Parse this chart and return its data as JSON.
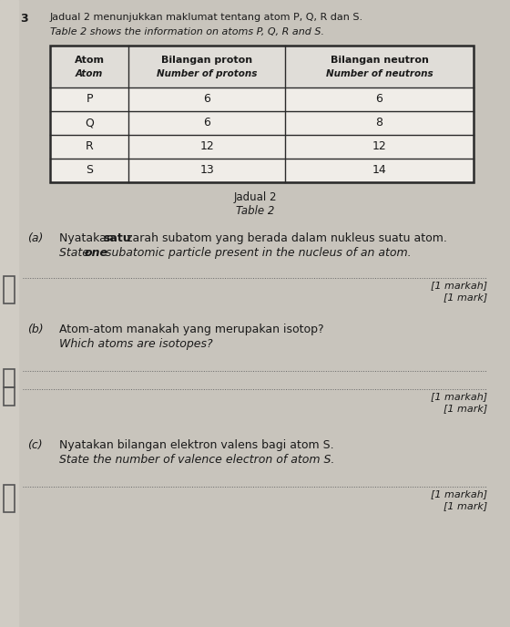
{
  "page_bg": "#c8c4bc",
  "inner_bg": "#dedad2",
  "question_number": "3",
  "title_malay": "Jadual 2 menunjukkan maklumat tentang atom P, Q, R dan S.",
  "title_english": "Table 2 shows the information on atoms P, Q, R and S.",
  "table_caption_malay": "Jadual 2",
  "table_caption_english": "Table 2",
  "col_headers": [
    [
      "Atom",
      "Atom"
    ],
    [
      "Bilangan proton",
      "Number of protons"
    ],
    [
      "Bilangan neutron",
      "Number of neutrons"
    ]
  ],
  "table_data": [
    [
      "P",
      "6",
      "6"
    ],
    [
      "Q",
      "6",
      "8"
    ],
    [
      "R",
      "12",
      "12"
    ],
    [
      "S",
      "13",
      "14"
    ]
  ],
  "part_a_label": "(a)",
  "part_a_malay_pre": "Nyatakan ",
  "part_a_malay_bold": "satu",
  "part_a_malay_post": " zarah subatom yang berada dalam nukleus suatu atom.",
  "part_a_english_pre": "State ",
  "part_a_english_bold": "one",
  "part_a_english_post": " subatomic particle present in the nucleus of an atom.",
  "part_a_mark_malay": "[1 markah]",
  "part_a_mark_english": "[1 mark]",
  "part_b_label": "(b)",
  "part_b_malay": "Atom-atom manakah yang merupakan isotop?",
  "part_b_english": "Which atoms are isotopes?",
  "part_b_mark_malay": "[1 markah]",
  "part_b_mark_english": "[1 mark]",
  "part_c_label": "(c)",
  "part_c_malay": "Nyatakan bilangan elektron valens bagi atom S.",
  "part_c_english": "State the number of valence electron of atom S.",
  "part_c_mark_malay": "[1 markah]",
  "part_c_mark_english": "[1 mark]",
  "font_color": "#1a1a1a",
  "table_border_color": "#2a2a2a",
  "dotted_line_color": "#666666",
  "bracket_color": "#555555",
  "left_bar_color": "#888888",
  "table_fill": "#f0ede8",
  "table_header_fill": "#e0ddd8"
}
